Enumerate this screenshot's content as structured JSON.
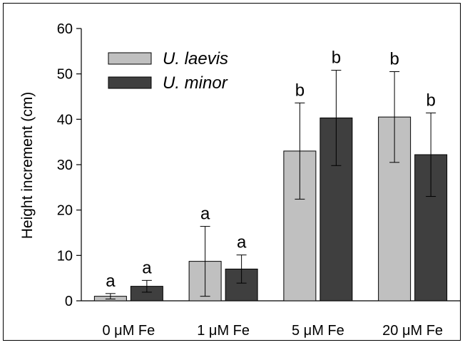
{
  "chart_data": {
    "type": "bar",
    "title": "",
    "xlabel": "",
    "ylabel": "Height increment (cm)",
    "ylim": [
      0,
      60
    ],
    "yticks": [
      0,
      10,
      20,
      30,
      40,
      50,
      60
    ],
    "grid": false,
    "legend_position": "top-left",
    "categories": [
      "0 μM Fe",
      "1 μM Fe",
      "5 μM Fe",
      "20 μM Fe"
    ],
    "series": [
      {
        "name": "U. laevis",
        "color": "#c0c0c0",
        "values": [
          1.0,
          8.7,
          33.0,
          40.5
        ],
        "errors": [
          0.6,
          7.7,
          10.6,
          10.0
        ],
        "labels": [
          "a",
          "a",
          "b",
          "b"
        ]
      },
      {
        "name": "U. minor",
        "color": "#3f3f3f",
        "values": [
          3.2,
          7.0,
          40.3,
          32.2
        ],
        "errors": [
          1.3,
          3.1,
          10.5,
          9.2
        ],
        "labels": [
          "a",
          "a",
          "b",
          "b"
        ]
      }
    ]
  }
}
